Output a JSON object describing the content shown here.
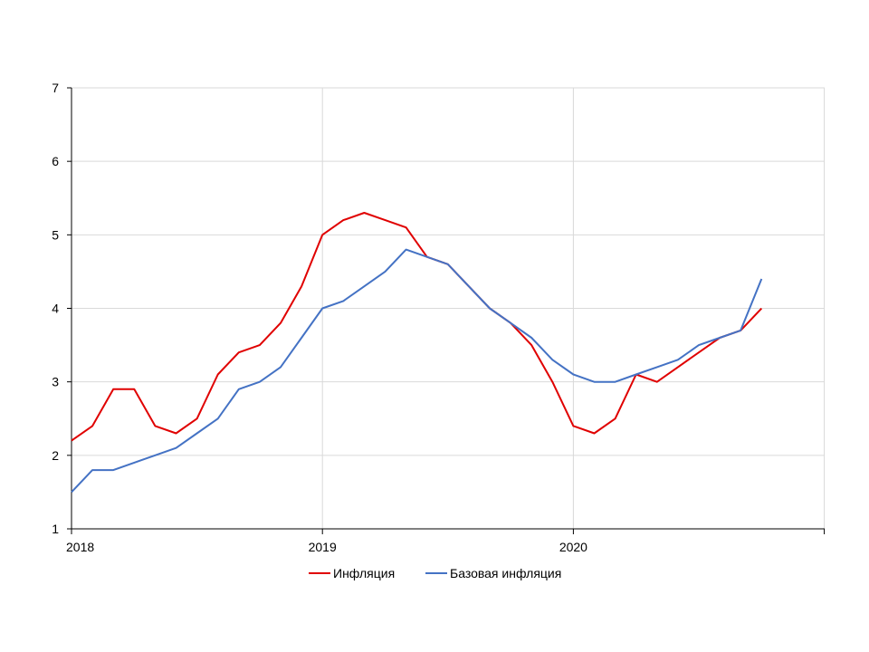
{
  "chart_data": {
    "type": "line",
    "title": "",
    "xlabel": "",
    "ylabel": "",
    "x": [
      "2018-01",
      "2018-02",
      "2018-03",
      "2018-04",
      "2018-05",
      "2018-06",
      "2018-07",
      "2018-08",
      "2018-09",
      "2018-10",
      "2018-11",
      "2018-12",
      "2019-01",
      "2019-02",
      "2019-03",
      "2019-04",
      "2019-05",
      "2019-06",
      "2019-07",
      "2019-08",
      "2019-09",
      "2019-10",
      "2019-11",
      "2019-12",
      "2020-01",
      "2020-02",
      "2020-03",
      "2020-04",
      "2020-05",
      "2020-06",
      "2020-07",
      "2020-08",
      "2020-09",
      "2020-10"
    ],
    "x_ticks": [
      "2018",
      "2019",
      "2020"
    ],
    "ylim": [
      1,
      7
    ],
    "y_ticks": [
      "1",
      "2",
      "3",
      "4",
      "5",
      "6",
      "7"
    ],
    "grid": true,
    "legend_position": "bottom",
    "series": [
      {
        "name": "Инфляция",
        "color": "#e00000",
        "values": [
          2.2,
          2.4,
          2.9,
          2.9,
          2.4,
          2.3,
          2.5,
          3.1,
          3.4,
          3.5,
          3.8,
          4.3,
          5.0,
          5.2,
          5.3,
          5.2,
          5.1,
          4.7,
          4.6,
          4.3,
          4.0,
          3.8,
          3.5,
          3.0,
          2.4,
          2.3,
          2.5,
          3.1,
          3.0,
          3.2,
          3.4,
          3.6,
          3.7,
          4.0
        ]
      },
      {
        "name": "Базовая инфляция",
        "color": "#4472c4",
        "values": [
          1.5,
          1.8,
          1.8,
          1.9,
          2.0,
          2.1,
          2.3,
          2.5,
          2.9,
          3.0,
          3.2,
          3.6,
          4.0,
          4.1,
          4.3,
          4.5,
          4.8,
          4.7,
          4.6,
          4.3,
          4.0,
          3.8,
          3.6,
          3.3,
          3.1,
          3.0,
          3.0,
          3.1,
          3.2,
          3.3,
          3.5,
          3.6,
          3.7,
          4.4
        ]
      }
    ]
  }
}
